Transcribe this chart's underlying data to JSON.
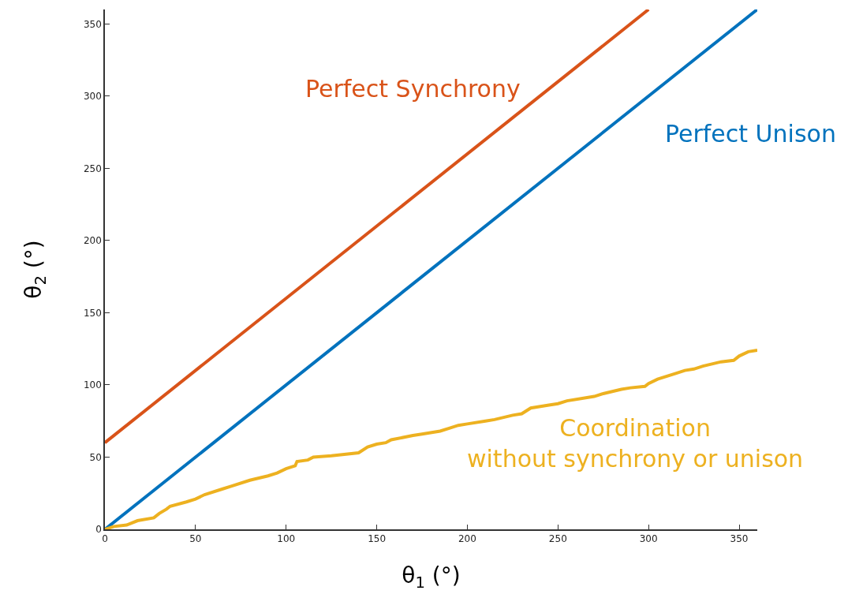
{
  "chart_data": {
    "type": "line",
    "xlabel": "θ$_{1}$ (°)",
    "ylabel": "θ$_{2}$ (°)",
    "xlim": [
      0,
      360
    ],
    "ylim": [
      0,
      360
    ],
    "xticks": [
      0,
      50,
      100,
      150,
      200,
      250,
      300,
      350
    ],
    "yticks": [
      0,
      50,
      100,
      150,
      200,
      250,
      300,
      350
    ],
    "legend": false,
    "series": [
      {
        "name": "Perfect Synchrony",
        "color": "#d95319",
        "x": [
          0,
          300
        ],
        "values": [
          60,
          360
        ]
      },
      {
        "name": "Perfect Unison",
        "color": "#0072bd",
        "x": [
          0,
          360
        ],
        "values": [
          0,
          360
        ]
      },
      {
        "name": "Coordination\nwithout synchrony or unison",
        "color": "#edb120",
        "x": [
          0,
          5,
          12,
          18,
          27,
          30,
          34,
          36,
          45,
          50,
          55,
          65,
          70,
          80,
          90,
          95,
          100,
          105,
          106,
          112,
          115,
          125,
          140,
          145,
          150,
          155,
          158,
          170,
          175,
          185,
          190,
          195,
          200,
          210,
          215,
          225,
          230,
          235,
          245,
          250,
          255,
          270,
          275,
          285,
          290,
          298,
          300,
          305,
          315,
          320,
          325,
          330,
          340,
          347,
          350,
          355,
          360
        ],
        "values": [
          0,
          2,
          3,
          6,
          8,
          11,
          14,
          16,
          19,
          21,
          24,
          28,
          30,
          34,
          37,
          39,
          42,
          44,
          47,
          48,
          50,
          51,
          53,
          57,
          59,
          60,
          62,
          65,
          66,
          68,
          70,
          72,
          73,
          75,
          76,
          79,
          80,
          84,
          86,
          87,
          89,
          92,
          94,
          97,
          98,
          99,
          101,
          104,
          108,
          110,
          111,
          113,
          116,
          117,
          120,
          123,
          124
        ]
      }
    ]
  }
}
